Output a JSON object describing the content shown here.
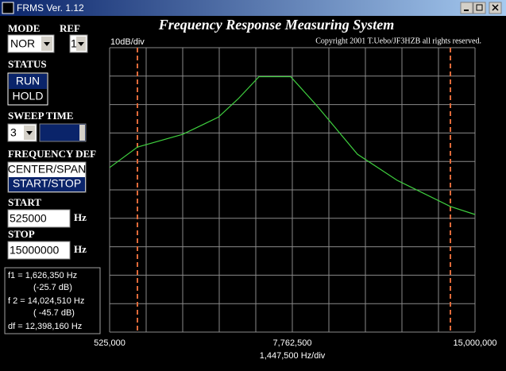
{
  "window": {
    "title": "FRMS Ver. 1.12"
  },
  "controls": {
    "mode_label": "MODE",
    "mode": "NOR",
    "ref_label": "REF",
    "ref": "1",
    "status_label": "STATUS",
    "status_options": [
      "RUN",
      "HOLD"
    ],
    "sweep_label": "SWEEP TIME",
    "sweep": "3",
    "freq_def_label": "FREQUENCY DEF",
    "freq_def_options": [
      "CENTER/SPAN",
      "START/STOP"
    ],
    "start_label": "START",
    "start": "525000",
    "stop_label": "STOP",
    "stop": "15000000",
    "unit": "Hz"
  },
  "readout": [
    "f1 = 1,626,350 Hz",
    "(-25.7 dB)",
    "f 2 = 14,024,510 Hz",
    "( -45.7 dB)",
    "df = 12,398,160 Hz"
  ],
  "chart_data": {
    "type": "line",
    "title": "Frequency Response Measuring System",
    "subtitle": "Copyright 2001 T.Uebo/JF3HZB all rights reserved.",
    "y_label": "10dB/div",
    "x_label": "1,447,500 Hz/div",
    "x": [
      525000,
      1626350,
      3420000,
      4836000,
      5622000,
      6441000,
      7700000,
      8770000,
      10343000,
      11916000,
      14024510,
      15000000
    ],
    "values": [
      -32.6,
      -25.7,
      -21.4,
      -15.6,
      -9.4,
      -2,
      -2,
      -12.1,
      -28.1,
      -36.9,
      -45.7,
      -48.4
    ],
    "color": "#3fcf3f",
    "markers": [
      1626350,
      14024510
    ],
    "marker_color": "#e06a3a",
    "xlim": [
      525000,
      15000000
    ],
    "xticks": [
      {
        "value": 525000,
        "label": "525,000"
      },
      {
        "value": 7762500,
        "label": "7,762,500"
      },
      {
        "value": 15000000,
        "label": "15,000,000"
      }
    ],
    "ylim": [
      -88,
      11
    ]
  }
}
